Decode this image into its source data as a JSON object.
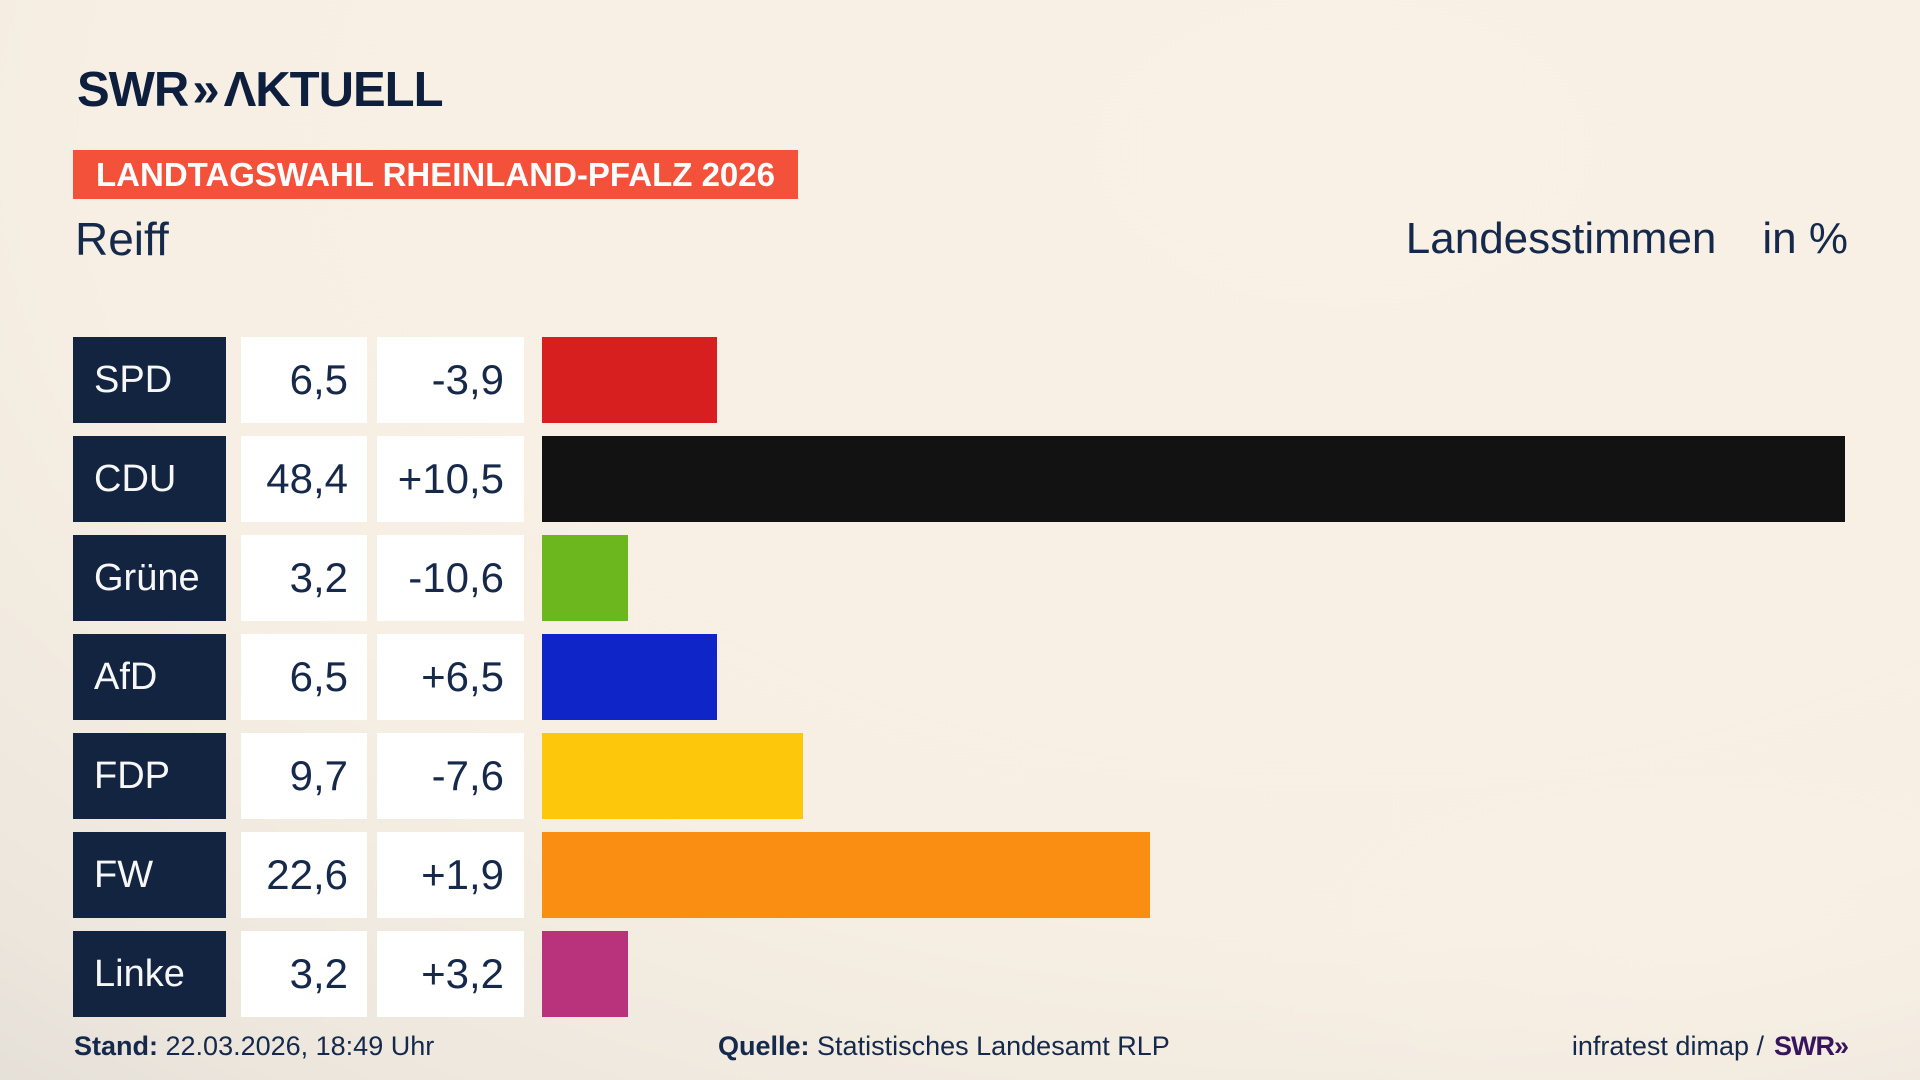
{
  "brand": {
    "logo_main": "SWR",
    "logo_chevron": "»",
    "logo_suffix": "ΛKTUELL"
  },
  "banner": {
    "label": "LANDTAGSWAHL RHEINLAND-PFALZ 2026",
    "bg_color": "#f4513b"
  },
  "title": "Reiff",
  "subtitle": {
    "metric": "Landesstimmen",
    "unit": "in %"
  },
  "chart_data": {
    "type": "bar",
    "orientation": "horizontal",
    "unit": "%",
    "categories": [
      "SPD",
      "CDU",
      "Grüne",
      "AfD",
      "FDP",
      "FW",
      "Linke"
    ],
    "values": [
      6.5,
      48.4,
      3.2,
      6.5,
      9.7,
      22.6,
      3.2
    ],
    "value_labels": [
      "6,5",
      "48,4",
      "3,2",
      "6,5",
      "9,7",
      "22,6",
      "3,2"
    ],
    "change_labels": [
      "-3,9",
      "+10,5",
      "-10,6",
      "+6,5",
      "-7,6",
      "+1,9",
      "+3,2"
    ],
    "bar_colors": [
      "#d71f1f",
      "#121212",
      "#6cb61e",
      "#0f25c8",
      "#fdc70b",
      "#f98e12",
      "#b8337c"
    ],
    "xlim": [
      0,
      48.4
    ],
    "title": "Reiff",
    "subtitle": "Landesstimmen in %",
    "grid": false,
    "legend": false
  },
  "footer": {
    "stand_label": "Stand:",
    "stand_value": "22.03.2026, 18:49 Uhr",
    "quelle_label": "Quelle:",
    "quelle_value": "Statistisches Landesamt RLP",
    "credit_text": "infratest dimap /",
    "credit_logo": "SWR»"
  }
}
